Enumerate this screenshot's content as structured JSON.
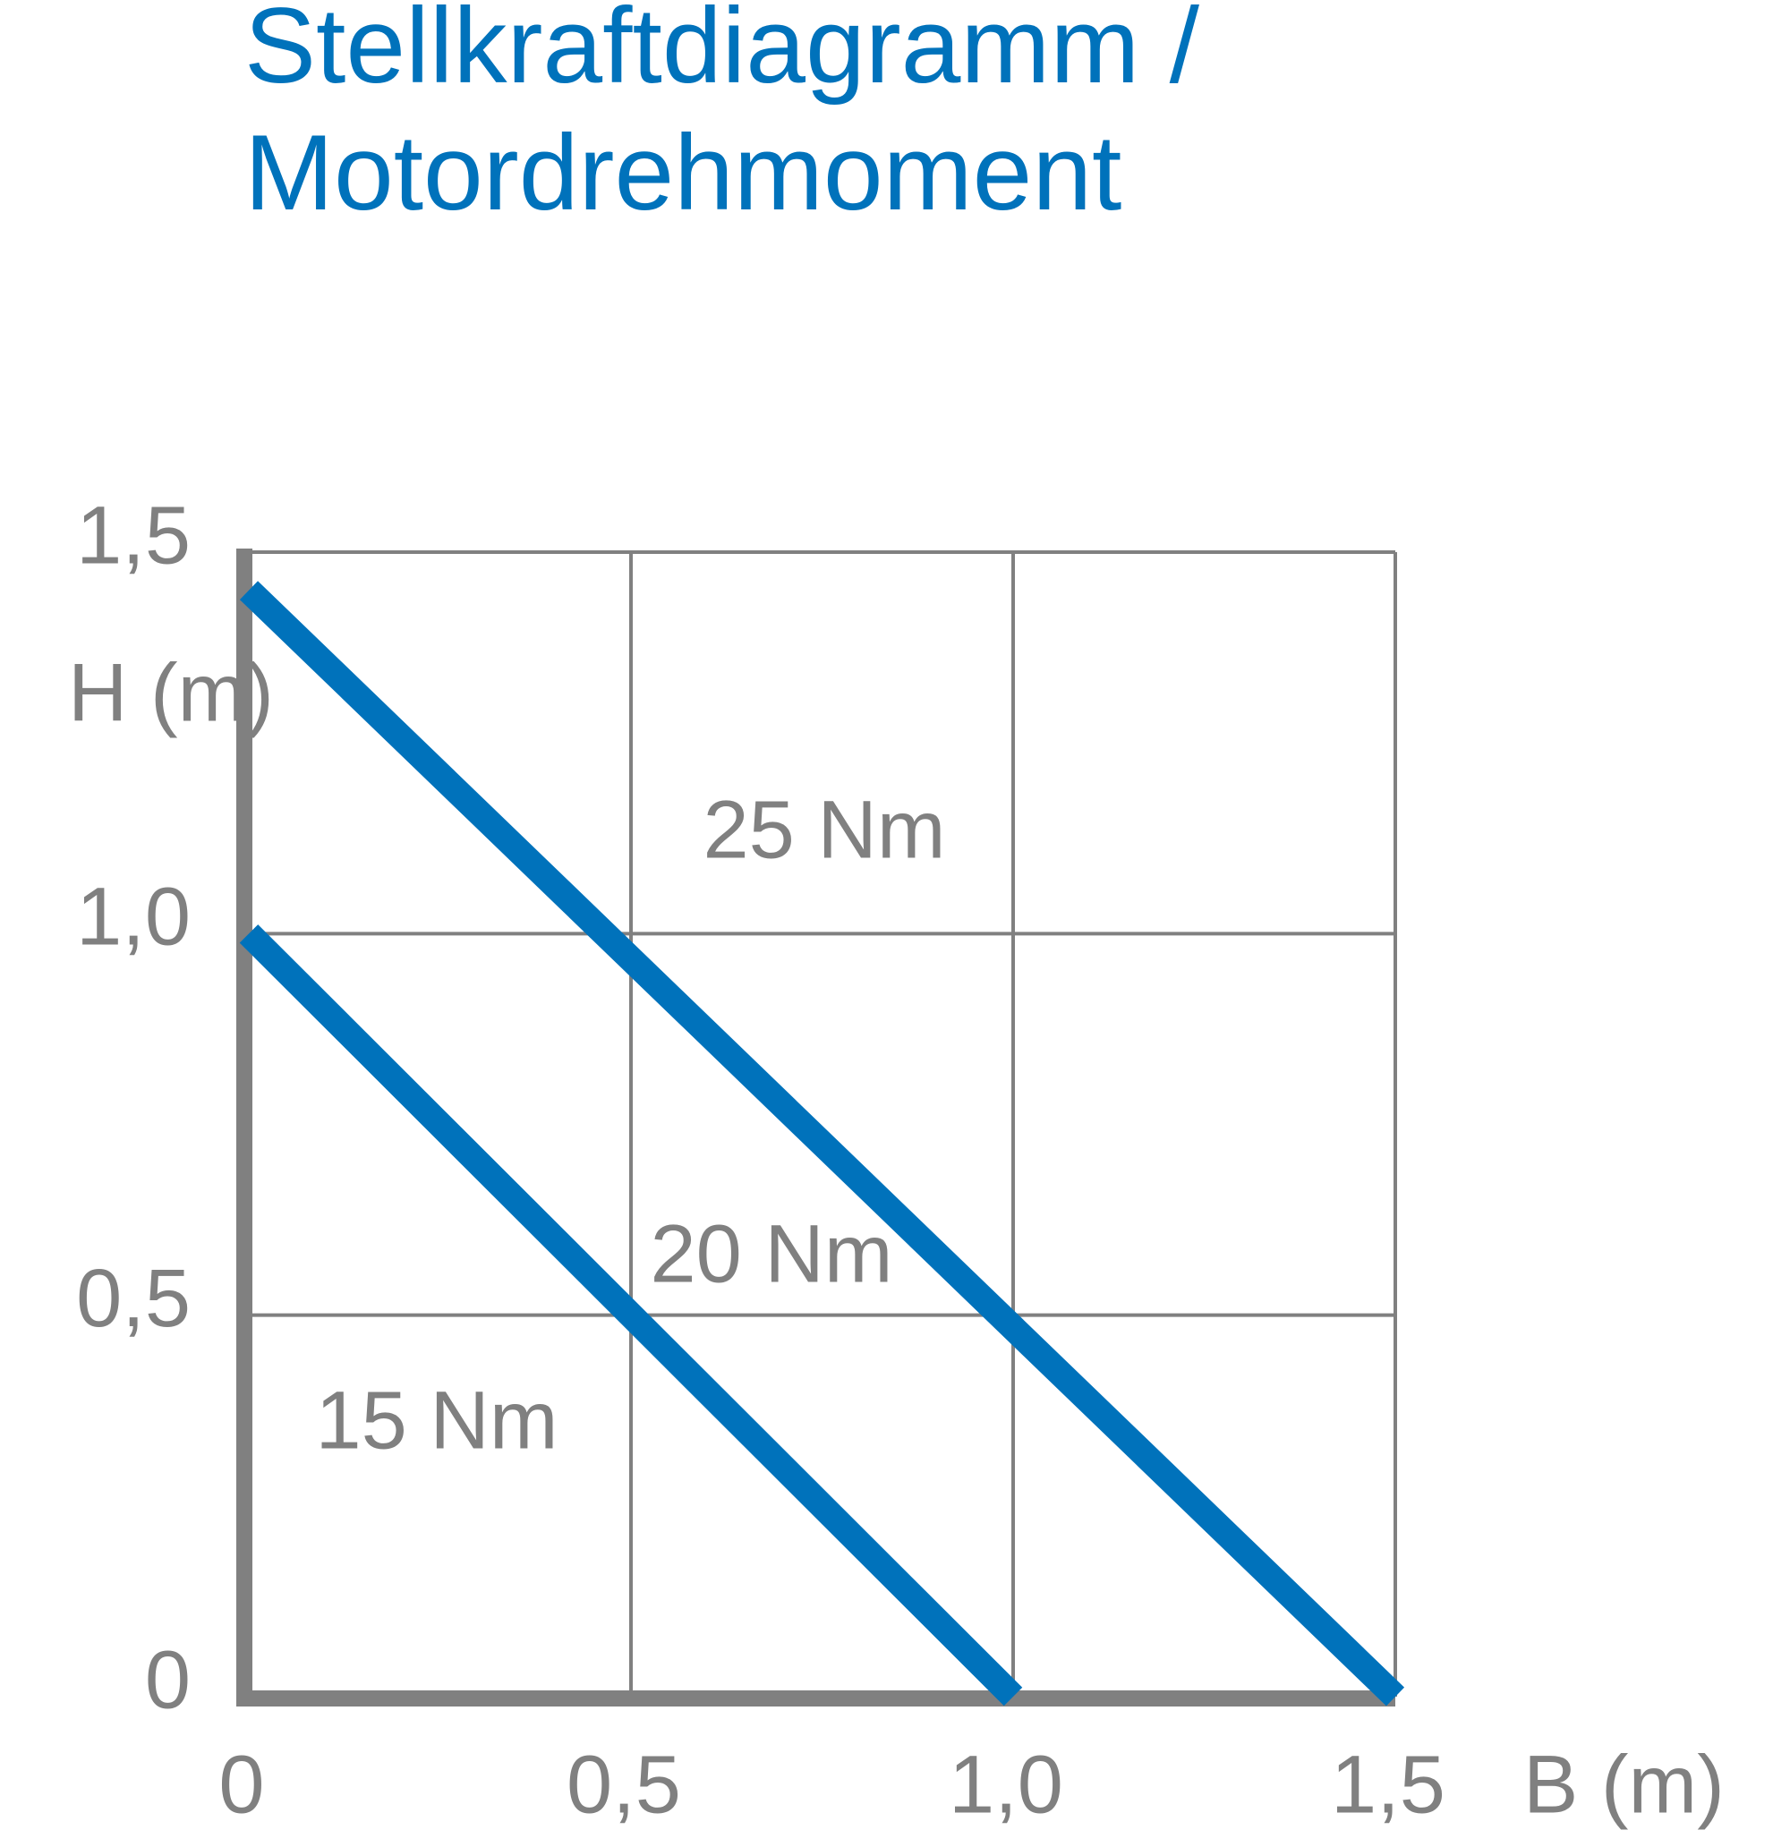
{
  "chart_data": {
    "type": "line",
    "title": [
      "Stellkraftdiagramm /",
      "Motordrehmoment"
    ],
    "x_label": "B (m)",
    "y_label": "H (m)",
    "series": [
      {
        "color": "#0072bb",
        "x": [
          0,
          1.5
        ],
        "values": [
          1.45,
          0
        ]
      },
      {
        "color": "#0072bb",
        "x": [
          0,
          1.0
        ],
        "values": [
          1.0,
          0
        ]
      }
    ],
    "annotations": [
      "25 Nm",
      "20 Nm",
      "15 Nm"
    ],
    "xlim": [
      0,
      1.5
    ],
    "ylim": [
      0,
      1.5
    ],
    "xticks": [
      0,
      {
        "value": 0.5,
        "label": "0,5"
      },
      {
        "value": 1.0,
        "label": "1,0"
      },
      {
        "value": 1.5,
        "label": "1,5"
      }
    ],
    "yticks": [
      0,
      {
        "value": 0.5,
        "label": "0,5"
      },
      {
        "value": 1.0,
        "label": "1,0"
      },
      {
        "value": 1.5,
        "label": "1,5"
      }
    ],
    "grid": true
  }
}
